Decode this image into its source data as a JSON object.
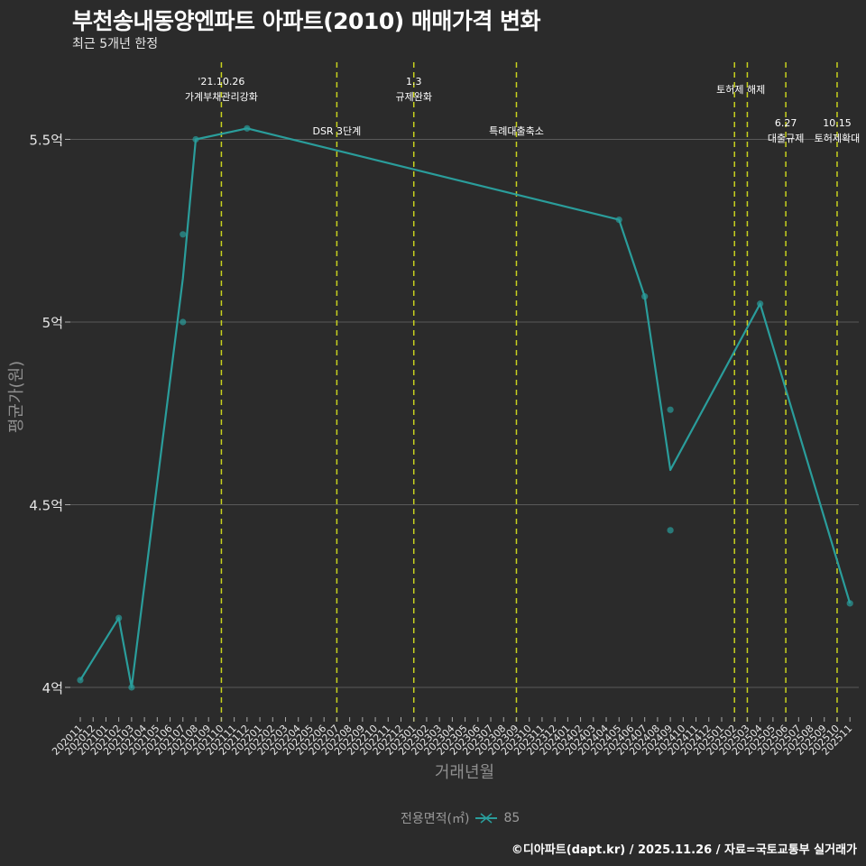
{
  "header": {
    "title": "부천송내동양엔파트 아파트(2010) 매매가격 변화",
    "subtitle": "최근 5개년 한정"
  },
  "footer": {
    "credit": "©디아파트(dapt.kr) / 2025.11.26 / 자료=국토교통부 실거래가"
  },
  "legend": {
    "title": "전용면적(㎡)",
    "item": "85",
    "color": "#2a9d9b"
  },
  "colors": {
    "background": "#2b2b2b",
    "line": "#2a9d9b",
    "grid": "#5a5a5a",
    "event_line": "#c8d21e",
    "axis_text": "#e6e6e6"
  },
  "chart_data": {
    "type": "line",
    "title": "부천송내동양엔파트 아파트(2010) 매매가격 변화",
    "subtitle": "최근 5개년 한정",
    "xlabel": "거래년월",
    "ylabel": "평균가(원)",
    "ylim": [
      3.93,
      5.7
    ],
    "yticks": [
      4.0,
      4.5,
      5.0,
      5.5
    ],
    "ytick_labels": [
      "4억",
      "4.5억",
      "5억",
      "5.5억"
    ],
    "grid": true,
    "legend_position": "bottom",
    "categories": [
      "202011",
      "202012",
      "202101",
      "202102",
      "202103",
      "202104",
      "202105",
      "202106",
      "202107",
      "202108",
      "202109",
      "202110",
      "202111",
      "202112",
      "202201",
      "202202",
      "202203",
      "202204",
      "202205",
      "202206",
      "202207",
      "202208",
      "202209",
      "202210",
      "202211",
      "202212",
      "202301",
      "202302",
      "202303",
      "202304",
      "202305",
      "202306",
      "202307",
      "202308",
      "202309",
      "202310",
      "202311",
      "202312",
      "202401",
      "202402",
      "202403",
      "202404",
      "202405",
      "202406",
      "202407",
      "202408",
      "202409",
      "202410",
      "202411",
      "202412",
      "202501",
      "202502",
      "202503",
      "202504",
      "202505",
      "202506",
      "202507",
      "202508",
      "202509",
      "202510",
      "202511"
    ],
    "series": [
      {
        "name": "85",
        "line": [
          {
            "x": "202011",
            "y": 4.02
          },
          {
            "x": "202102",
            "y": 4.19
          },
          {
            "x": "202103",
            "y": 4.0
          },
          {
            "x": "202107",
            "y": 5.12
          },
          {
            "x": "202108",
            "y": 5.5
          },
          {
            "x": "202112",
            "y": 5.53
          },
          {
            "x": "202405",
            "y": 5.28
          },
          {
            "x": "202407",
            "y": 5.07
          },
          {
            "x": "202409",
            "y": 4.595
          },
          {
            "x": "202504",
            "y": 5.05
          },
          {
            "x": "202511",
            "y": 4.23
          }
        ],
        "points": [
          {
            "x": "202011",
            "y": 4.02
          },
          {
            "x": "202102",
            "y": 4.19
          },
          {
            "x": "202103",
            "y": 4.0
          },
          {
            "x": "202107",
            "y": 5.24
          },
          {
            "x": "202107",
            "y": 5.0
          },
          {
            "x": "202108",
            "y": 5.5
          },
          {
            "x": "202112",
            "y": 5.53
          },
          {
            "x": "202405",
            "y": 5.28
          },
          {
            "x": "202407",
            "y": 5.07
          },
          {
            "x": "202409",
            "y": 4.76
          },
          {
            "x": "202409",
            "y": 4.43
          },
          {
            "x": "202504",
            "y": 5.05
          },
          {
            "x": "202511",
            "y": 4.23
          }
        ]
      }
    ],
    "events": [
      {
        "x": "202110",
        "label": [
          "'21.10.26",
          "가계부채관리강화"
        ],
        "row": 0
      },
      {
        "x": "202207",
        "label": [
          "DSR 3단계"
        ],
        "row": 2
      },
      {
        "x": "202301",
        "label": [
          "1.3",
          "규제완화"
        ],
        "row": 0
      },
      {
        "x": "202309",
        "label": [
          "특례대출축소"
        ],
        "row": 2
      },
      {
        "x": "202502",
        "label": [
          "토허제 해제"
        ],
        "row": 1,
        "anchor_offset": 7
      },
      {
        "x": "202503",
        "label": [],
        "row": 1
      },
      {
        "x": "202506",
        "label": [
          "6.27",
          "대출규제"
        ],
        "row": 3
      },
      {
        "x": "202510",
        "label": [
          "10.15",
          "토허제확대"
        ],
        "row": 3
      }
    ]
  }
}
